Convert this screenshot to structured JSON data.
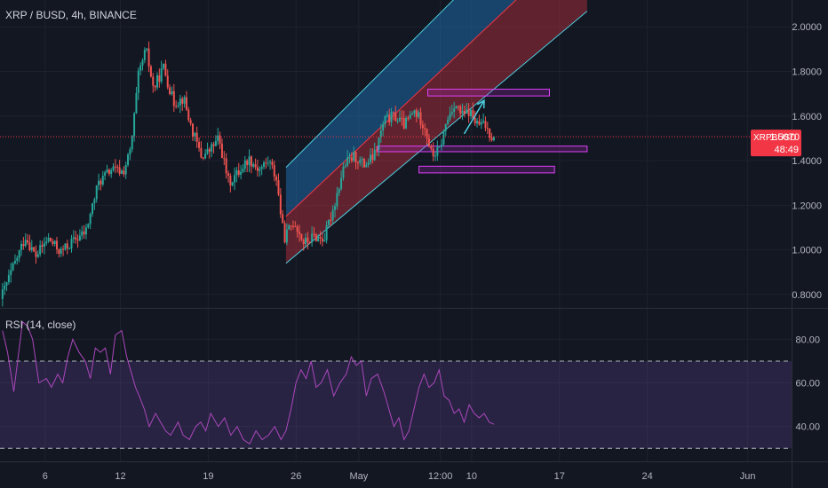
{
  "header": {
    "symbol_title": "XRP / BUSD, 4h, BINANCE"
  },
  "price_tag": {
    "symbol": "XRPBUSD",
    "price": "1.5070",
    "countdown": "48:49",
    "color": "#f23645"
  },
  "rsi_panel": {
    "title": "RSI (14, close)",
    "color": "#ab47bc",
    "band_color": "#7e57c2"
  },
  "chart_data": [
    {
      "type": "candlestick",
      "title": "XRP / BUSD, 4h, BINANCE",
      "y_ticks": [
        "2.0000",
        "1.8000",
        "1.6000",
        "1.4000",
        "1.2000",
        "1.0000",
        "0.8000"
      ],
      "y_tick_values": [
        2.0,
        1.8,
        1.6,
        1.4,
        1.2,
        1.0,
        0.8
      ],
      "ylim": [
        0.74,
        2.12
      ],
      "x_ticks": [
        "6",
        "12",
        "19",
        "26",
        "May",
        "12:00",
        "10",
        "17",
        "24",
        "Jun"
      ],
      "x_tick_days": [
        6,
        12,
        19,
        26,
        31,
        37.5,
        40,
        47,
        54,
        62
      ],
      "x_range_days": [
        2.4,
        65.5
      ],
      "last_price": 1.507,
      "series": [
        {
          "name": "XRPBUSD",
          "anchors": [
            [
              2.6,
              0.78
            ],
            [
              3.6,
              0.92
            ],
            [
              4.6,
              1.06
            ],
            [
              5.4,
              0.97
            ],
            [
              6.4,
              1.05
            ],
            [
              7.4,
              0.99
            ],
            [
              8.4,
              1.04
            ],
            [
              9.4,
              1.08
            ],
            [
              10.4,
              1.3
            ],
            [
              11.4,
              1.36
            ],
            [
              12.4,
              1.35
            ],
            [
              13.0,
              1.45
            ],
            [
              13.6,
              1.78
            ],
            [
              14.2,
              1.9
            ],
            [
              14.8,
              1.72
            ],
            [
              15.6,
              1.82
            ],
            [
              16.4,
              1.66
            ],
            [
              17.2,
              1.68
            ],
            [
              17.8,
              1.55
            ],
            [
              18.6,
              1.42
            ],
            [
              19.2,
              1.44
            ],
            [
              20.0,
              1.5
            ],
            [
              20.8,
              1.3
            ],
            [
              21.6,
              1.35
            ],
            [
              22.4,
              1.41
            ],
            [
              23.2,
              1.36
            ],
            [
              24.0,
              1.4
            ],
            [
              24.6,
              1.32
            ],
            [
              25.2,
              1.05
            ],
            [
              26.0,
              1.13
            ],
            [
              26.8,
              1.03
            ],
            [
              27.6,
              1.06
            ],
            [
              28.4,
              1.05
            ],
            [
              29.2,
              1.2
            ],
            [
              30.0,
              1.38
            ],
            [
              30.8,
              1.42
            ],
            [
              31.6,
              1.38
            ],
            [
              32.4,
              1.42
            ],
            [
              33.2,
              1.58
            ],
            [
              34.0,
              1.6
            ],
            [
              34.8,
              1.56
            ],
            [
              35.6,
              1.62
            ],
            [
              36.4,
              1.56
            ],
            [
              37.0,
              1.42
            ],
            [
              37.6,
              1.45
            ],
            [
              38.2,
              1.58
            ],
            [
              38.8,
              1.66
            ],
            [
              39.4,
              1.6
            ],
            [
              40.0,
              1.62
            ],
            [
              40.6,
              1.56
            ],
            [
              41.2,
              1.56
            ],
            [
              41.8,
              1.507
            ]
          ]
        }
      ],
      "regression_channel": {
        "start_day": 25.2,
        "end_day": 49.2,
        "lower_start": 0.94,
        "lower_end": 2.07,
        "mid_start": 1.15,
        "mid_end": 2.42,
        "upper_start": 1.37,
        "upper_end": 2.72
      },
      "zones": [
        {
          "from_day": 36.5,
          "to_day": 46.2,
          "low": 1.69,
          "high": 1.72
        },
        {
          "from_day": 32.5,
          "to_day": 49.2,
          "low": 1.44,
          "high": 1.465
        },
        {
          "from_day": 35.8,
          "to_day": 46.6,
          "low": 1.345,
          "high": 1.375
        }
      ],
      "arrow": {
        "from": [
          39.4,
          1.52
        ],
        "to": [
          41.0,
          1.67
        ]
      }
    },
    {
      "type": "line",
      "title": "RSI (14, close)",
      "y_ticks": [
        "80.00",
        "60.00",
        "40.00"
      ],
      "y_tick_values": [
        80,
        60,
        40
      ],
      "ylim": [
        24,
        94
      ],
      "bands": [
        30,
        70
      ],
      "series": [
        {
          "name": "RSI",
          "x": [
            2.6,
            3.0,
            3.5,
            4.2,
            4.6,
            5.0,
            5.5,
            6.1,
            6.5,
            7.0,
            7.4,
            7.8,
            8.2,
            8.7,
            9.2,
            9.6,
            10.0,
            10.4,
            10.8,
            11.2,
            11.6,
            12.1,
            12.5,
            12.9,
            13.2,
            13.5,
            13.9,
            14.3,
            14.8,
            15.2,
            15.6,
            16.0,
            16.6,
            17.0,
            17.5,
            18.0,
            18.4,
            18.8,
            19.2,
            19.8,
            20.3,
            20.8,
            21.3,
            21.8,
            22.3,
            22.8,
            23.3,
            23.8,
            24.3,
            24.8,
            25.2,
            25.6,
            26.0,
            26.4,
            26.8,
            27.2,
            27.6,
            28.0,
            28.5,
            29.0,
            29.5,
            30.0,
            30.4,
            30.8,
            31.2,
            31.6,
            32.0,
            32.5,
            33.0,
            33.4,
            33.8,
            34.2,
            34.6,
            35.0,
            35.4,
            35.8,
            36.2,
            36.6,
            37.0,
            37.4,
            37.8,
            38.2,
            38.6,
            39.0,
            39.4,
            39.8,
            40.2,
            40.6,
            41.0,
            41.4,
            41.8
          ],
          "y": [
            84,
            74,
            56,
            88,
            86,
            80,
            60,
            62,
            58,
            64,
            60,
            72,
            80,
            74,
            70,
            62,
            76,
            74,
            76,
            64,
            82,
            84,
            72,
            64,
            58,
            54,
            48,
            40,
            46,
            42,
            38,
            36,
            42,
            36,
            34,
            40,
            42,
            38,
            46,
            40,
            44,
            36,
            40,
            34,
            32,
            38,
            34,
            36,
            40,
            34,
            38,
            48,
            60,
            66,
            62,
            70,
            58,
            60,
            66,
            54,
            60,
            64,
            72,
            68,
            70,
            54,
            62,
            64,
            56,
            48,
            40,
            44,
            34,
            38,
            48,
            58,
            64,
            58,
            60,
            66,
            54,
            52,
            46,
            48,
            42,
            50,
            46,
            44,
            46,
            42,
            41
          ]
        }
      ]
    }
  ]
}
